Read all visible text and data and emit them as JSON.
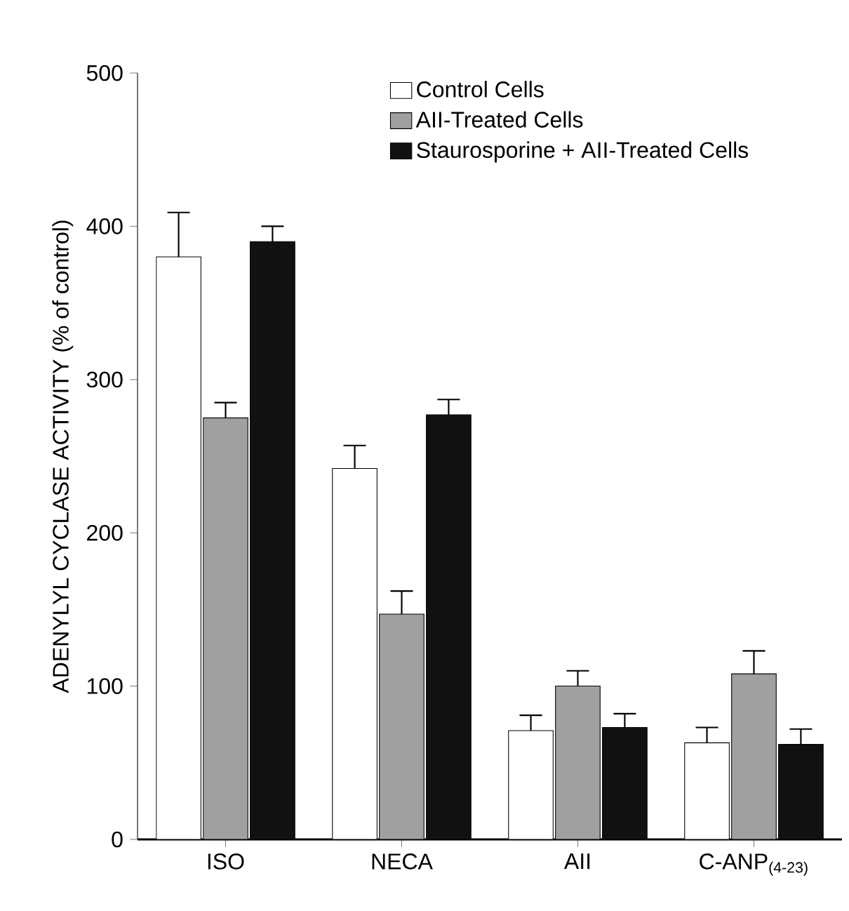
{
  "chart_data": {
    "type": "bar",
    "ylabel": "ADENYLYL CYCLASE ACTIVITY (% of control)",
    "categories": [
      "ISO",
      "NECA",
      "AII",
      "C-ANP$_{(4-23)}$"
    ],
    "series": [
      {
        "name": "Control Cells",
        "color": "#ffffff",
        "values": [
          380,
          242,
          71,
          63
        ],
        "errors": [
          [
            380,
            409
          ],
          [
            242,
            257
          ],
          [
            71,
            81
          ],
          [
            63,
            73
          ]
        ]
      },
      {
        "name": "AII-Treated Cells",
        "color": "#a0a0a0",
        "values": [
          275,
          147,
          100,
          108
        ],
        "errors": [
          [
            275,
            285
          ],
          [
            147,
            162
          ],
          [
            100,
            110
          ],
          [
            108,
            123
          ]
        ]
      },
      {
        "name": "Staurosporine + AII-Treated Cells",
        "color": "#111111",
        "values": [
          390,
          277,
          73,
          62
        ],
        "errors": [
          [
            390,
            400
          ],
          [
            277,
            287
          ],
          [
            73,
            82
          ],
          [
            62,
            72
          ]
        ]
      }
    ],
    "ylim": [
      0,
      500
    ],
    "yticks": [
      0,
      100,
      200,
      300,
      400,
      500
    ],
    "legend": "top right"
  }
}
